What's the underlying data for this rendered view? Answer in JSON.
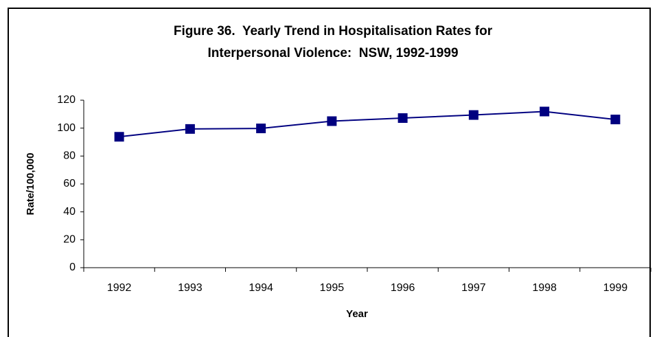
{
  "chart_data": {
    "type": "line",
    "title": [
      "Figure 36.  Yearly Trend in Hospitalisation Rates for",
      "Interpersonal Violence:  NSW, 1992-1999"
    ],
    "x_label": "Year",
    "y_label": "Rate/100,000",
    "categories": [
      "1992",
      "1993",
      "1994",
      "1995",
      "1996",
      "1997",
      "1998",
      "1999"
    ],
    "series": [
      {
        "name": "Rate",
        "color": "#000080",
        "values": [
          93.8,
          99.4,
          99.8,
          105,
          107.2,
          109.4,
          111.9,
          106.2
        ]
      }
    ],
    "ylim": [
      0,
      120
    ],
    "yticks": [
      0,
      20,
      40,
      60,
      80,
      100,
      120
    ],
    "grid": false,
    "legend": false
  }
}
